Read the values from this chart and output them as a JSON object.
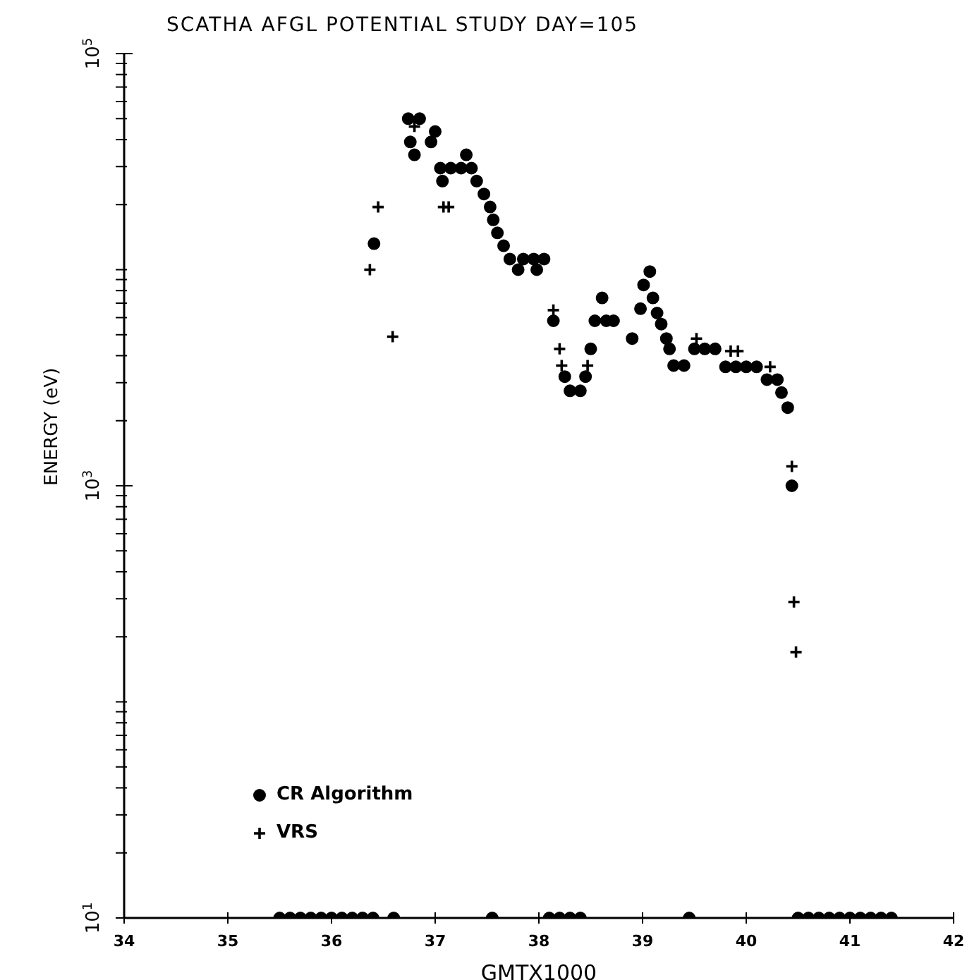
{
  "chart_data": {
    "type": "scatter",
    "title": "SCATHA AFGL POTENTIAL STUDY DAY=105",
    "xlabel": "GMTX1000",
    "ylabel": "ENERGY (eV)",
    "log": "y",
    "xlim": [
      34,
      42
    ],
    "xticks": [
      34,
      35,
      36,
      37,
      38,
      39,
      40,
      41,
      42
    ],
    "ylim": [
      10,
      100000
    ],
    "yticks": [
      {
        "value": 10,
        "label": "10$^{1}$"
      },
      {
        "value": 20,
        "label": null
      },
      {
        "value": 30,
        "label": null
      },
      {
        "value": 40,
        "label": null
      },
      {
        "value": 50,
        "label": null
      },
      {
        "value": 60,
        "label": null
      },
      {
        "value": 70,
        "label": null
      },
      {
        "value": 80,
        "label": null
      },
      {
        "value": 90,
        "label": null
      },
      {
        "value": 100,
        "label": null
      },
      {
        "value": 200,
        "label": null
      },
      {
        "value": 300,
        "label": null
      },
      {
        "value": 400,
        "label": null
      },
      {
        "value": 500,
        "label": null
      },
      {
        "value": 600,
        "label": null
      },
      {
        "value": 700,
        "label": null
      },
      {
        "value": 800,
        "label": null
      },
      {
        "value": 900,
        "label": null
      },
      {
        "value": 1000,
        "label": "10$^{3}$"
      },
      {
        "value": 2000,
        "label": null
      },
      {
        "value": 3000,
        "label": null
      },
      {
        "value": 4000,
        "label": null
      },
      {
        "value": 5000,
        "label": null
      },
      {
        "value": 6000,
        "label": null
      },
      {
        "value": 7000,
        "label": null
      },
      {
        "value": 8000,
        "label": null
      },
      {
        "value": 9000,
        "label": null
      },
      {
        "value": 10000,
        "label": null
      },
      {
        "value": 20000,
        "label": null
      },
      {
        "value": 30000,
        "label": null
      },
      {
        "value": 40000,
        "label": null
      },
      {
        "value": 50000,
        "label": null
      },
      {
        "value": 60000,
        "label": null
      },
      {
        "value": 70000,
        "label": null
      },
      {
        "value": 80000,
        "label": null
      },
      {
        "value": 90000,
        "label": null
      },
      {
        "value": 100000,
        "label": "10$^{5}$"
      }
    ],
    "grid": false,
    "legend": "bottom left",
    "series": [
      {
        "name": "CR Algorithm",
        "color": "#000000",
        "marker": "circle",
        "x": [
          36.41,
          36.74,
          36.76,
          36.8,
          36.85,
          36.96,
          37.0,
          37.05,
          37.07,
          37.15,
          37.25,
          37.3,
          37.35,
          37.4,
          37.47,
          37.53,
          37.56,
          37.6,
          37.66,
          37.72,
          37.8,
          37.85,
          37.95,
          37.98,
          38.05,
          38.14,
          38.25,
          38.3,
          38.4,
          38.45,
          38.5,
          38.54,
          38.61,
          38.65,
          38.72,
          38.9,
          38.98,
          39.01,
          39.07,
          39.1,
          39.14,
          39.18,
          39.23,
          39.26,
          39.3,
          39.4,
          39.5,
          39.6,
          39.7,
          39.8,
          39.9,
          40.0,
          40.1,
          40.2,
          40.3,
          40.34,
          40.4,
          40.44,
          35.5,
          35.6,
          35.7,
          35.8,
          35.9,
          36.0,
          36.1,
          36.2,
          36.3,
          36.4,
          36.6,
          37.55,
          38.1,
          38.2,
          38.3,
          38.4,
          39.45,
          40.5,
          40.6,
          40.7,
          40.8,
          40.9,
          41.0,
          41.1,
          41.2,
          41.3,
          41.4
        ],
        "values": [
          13200,
          50000,
          39000,
          34000,
          50000,
          39000,
          43600,
          29500,
          25700,
          29500,
          29500,
          34000,
          29500,
          25700,
          22400,
          19500,
          17000,
          14800,
          12900,
          11200,
          10000,
          11200,
          11200,
          10000,
          11200,
          5800,
          3200,
          2750,
          2750,
          3200,
          4300,
          5800,
          7400,
          5800,
          5800,
          4800,
          6600,
          8500,
          9800,
          7400,
          6300,
          5600,
          4800,
          4300,
          3600,
          3600,
          4300,
          4300,
          4300,
          3550,
          3550,
          3550,
          3550,
          3100,
          3100,
          2700,
          2300,
          1000,
          10,
          10,
          10,
          10,
          10,
          10,
          10,
          10,
          10,
          10,
          10,
          10,
          10,
          10,
          10,
          10,
          10,
          10,
          10,
          10,
          10,
          10,
          10,
          10,
          10,
          10,
          10
        ]
      },
      {
        "name": "VRS",
        "color": "#000000",
        "marker": "cross",
        "x": [
          36.37,
          36.45,
          36.59,
          36.8,
          37.08,
          37.13,
          38.14,
          38.2,
          38.22,
          38.47,
          39.52,
          39.85,
          39.92,
          40.23,
          40.44,
          40.46,
          40.48
        ],
        "values": [
          10000,
          19500,
          4900,
          46000,
          19500,
          19500,
          6500,
          4300,
          3600,
          3600,
          4800,
          4200,
          4200,
          3550,
          1230,
          290,
          170
        ]
      }
    ]
  }
}
